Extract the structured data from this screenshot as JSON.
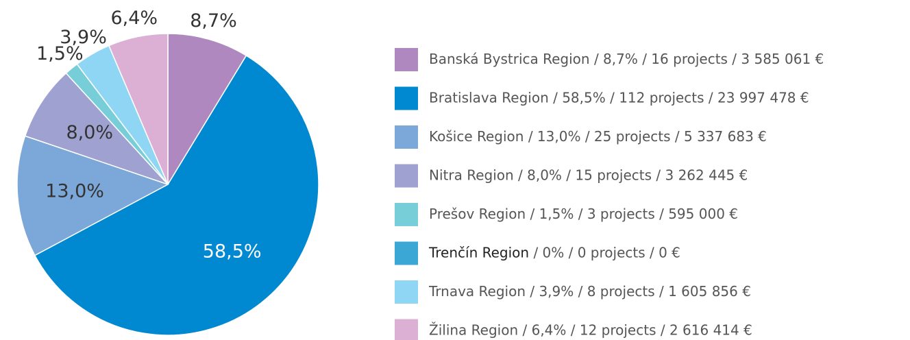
{
  "chart_data": {
    "type": "pie",
    "categories": [
      "Banská Bystrica Region",
      "Bratislava Region",
      "Košice Region",
      "Nitra Region",
      "Prešov Region",
      "Trenčín Region",
      "Trnava Region",
      "Žilina Region"
    ],
    "values": [
      8.7,
      58.5,
      13.0,
      8.0,
      1.5,
      0,
      3.9,
      6.4
    ],
    "value_labels": [
      "8,7%",
      "58,5%",
      "13,0%",
      "8,0%",
      "1,5%",
      null,
      "3,9%",
      "6,4%"
    ],
    "legend_details": [
      " / 8,7% / 16 projects / 3 585 061 €",
      " / 58,5% / 112 projects / 23 997 478 €",
      " / 13,0% / 25 projects / 5 337 683 €",
      " / 8,0% / 15 projects / 3 262 445 €",
      " / 1,5% / 3 projects / 595 000 €",
      " / 0% / 0 projects / 0 €",
      " / 3,9% / 8 projects / 1 605 856 €",
      " / 6,4% / 12 projects / 2 616 414 €"
    ],
    "colors": [
      "#b088c0",
      "#0089d0",
      "#7ba7d9",
      "#9fa2d1",
      "#77ced8",
      "#3aa7d4",
      "#8fd6f5",
      "#dcb0d4"
    ],
    "legend": "right"
  }
}
